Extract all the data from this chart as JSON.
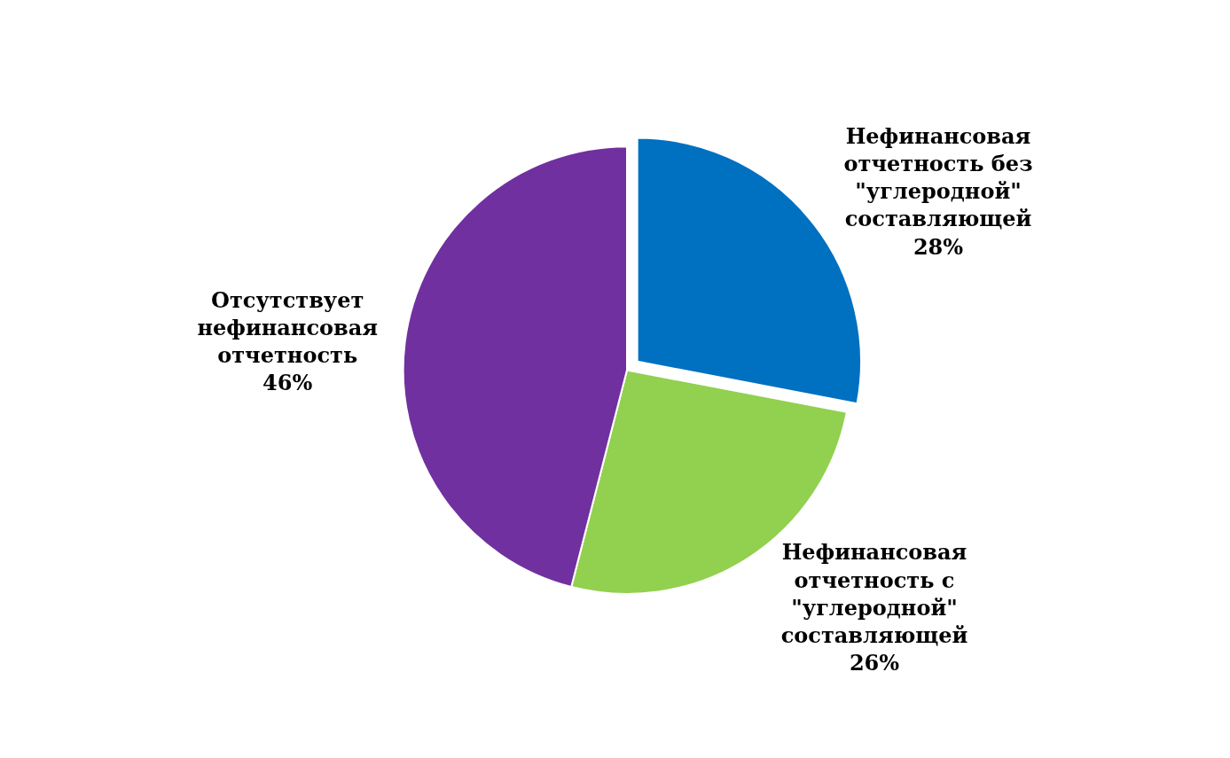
{
  "chart_data": {
    "type": "pie",
    "categories": [
      "Нефинансовая отчетность без \"углеродной\" составляющей",
      "Нефинансовая отчетность с \"углеродной\" составляющей",
      "Отсутствует нефинансовая отчетность"
    ],
    "values": [
      28,
      26,
      46
    ],
    "value_labels": [
      "28%",
      "26%",
      "46%"
    ],
    "colors": [
      "#0070c0",
      "#92d050",
      "#7030a0"
    ],
    "legend": false
  }
}
